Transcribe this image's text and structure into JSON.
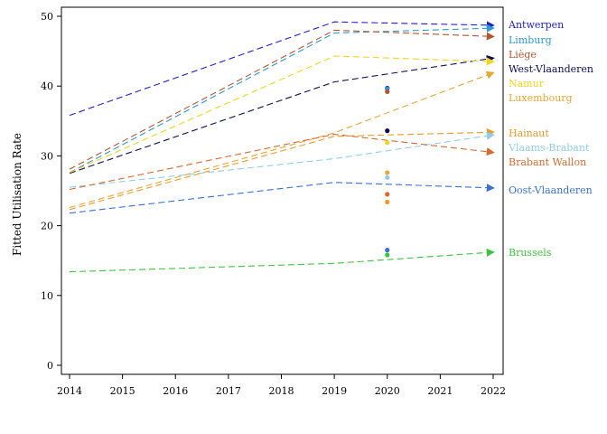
{
  "chart_data": {
    "type": "line",
    "title": "",
    "xlabel": "",
    "ylabel": "Fitted Utilisation Rate",
    "x": [
      2014,
      2019,
      2022
    ],
    "xticks": [
      "2014",
      "2015",
      "2016",
      "2017",
      "2018",
      "2019",
      "2020",
      "2021",
      "2022"
    ],
    "yticks": [
      "0",
      "10",
      "20",
      "30",
      "40",
      "50"
    ],
    "xlim": [
      2014,
      2022
    ],
    "ylim": [
      0,
      50
    ],
    "grid": false,
    "legend_position": "right, labels at line ends",
    "series": [
      {
        "name": "Antwerpen",
        "color": "#1f1fd6",
        "values": [
          35.8,
          49.2,
          48.7
        ],
        "point_2020": 39.7
      },
      {
        "name": "Limburg",
        "color": "#2b9ad6",
        "values": [
          27.6,
          47.6,
          48.3
        ],
        "point_2020": 39.6
      },
      {
        "name": "Liège",
        "color": "#b5552f",
        "values": [
          28.1,
          48.0,
          47.1
        ],
        "point_2020": 39.2
      },
      {
        "name": "West-Vlaanderen",
        "color": "#0c0c54",
        "values": [
          27.5,
          40.6,
          44.0
        ],
        "point_2020": 33.6
      },
      {
        "name": "Namur",
        "color": "#f3d51d",
        "values": [
          27.6,
          44.3,
          43.5
        ],
        "point_2020": 31.9
      },
      {
        "name": "Luxembourg",
        "color": "#e8a633",
        "values": [
          22.6,
          33.3,
          41.9
        ],
        "point_2020": 27.6
      },
      {
        "name": "Hainaut",
        "color": "#f09a26",
        "values": [
          22.3,
          32.8,
          33.4
        ],
        "point_2020": 23.4
      },
      {
        "name": "Vlaams-Brabant",
        "color": "#8fcdf0",
        "values": [
          25.5,
          29.6,
          33.0
        ],
        "point_2020": 26.9
      },
      {
        "name": "Brabant Wallon",
        "color": "#d8692b",
        "values": [
          25.2,
          33.1,
          30.5
        ],
        "point_2020": 24.5
      },
      {
        "name": "Oost-Vlaanderen",
        "color": "#3a6fd8",
        "values": [
          21.8,
          26.2,
          25.4
        ],
        "point_2020": 16.5
      },
      {
        "name": "Brussels",
        "color": "#3cc43c",
        "values": [
          13.4,
          14.6,
          16.2
        ],
        "point_2020": 15.8
      }
    ]
  }
}
